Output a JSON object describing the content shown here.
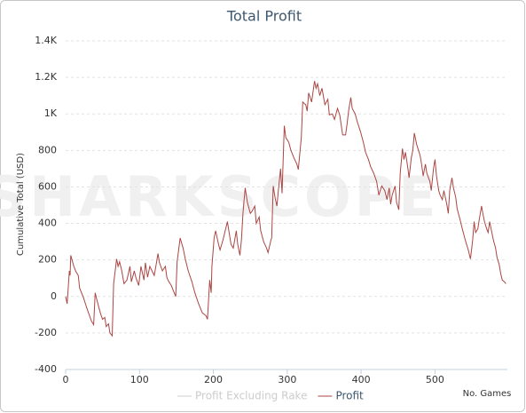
{
  "chart_data": {
    "type": "line",
    "title": "Total Profit",
    "y_label": "Cumulative Total (USD)",
    "x_label": "No. Games",
    "watermark": "SHARKSCOPE",
    "xlim": [
      0,
      598
    ],
    "xticks": [
      0,
      100,
      200,
      300,
      400,
      500
    ],
    "ylim": [
      -400,
      1400
    ],
    "yticks": [
      -400,
      -200,
      0,
      200,
      400,
      600,
      800,
      {
        "value": 1000,
        "label": "1K"
      },
      {
        "value": 1200,
        "label": "1.2K"
      },
      {
        "value": 1400,
        "label": "1.4K"
      }
    ],
    "grid": true,
    "x": [
      0,
      2,
      5,
      6,
      7,
      11,
      14,
      17,
      19,
      24,
      28,
      31,
      35,
      38,
      40,
      43,
      47,
      50,
      53,
      55,
      58,
      60,
      63,
      65,
      69,
      71,
      73,
      76,
      79,
      83,
      87,
      89,
      93,
      95,
      99,
      102,
      106,
      108,
      111,
      114,
      117,
      120,
      123,
      125,
      127,
      131,
      135,
      137,
      139,
      143,
      147,
      149,
      151,
      155,
      159,
      162,
      166,
      171,
      175,
      180,
      185,
      190,
      192,
      195,
      197,
      198,
      201,
      203,
      207,
      209,
      213,
      216,
      219,
      221,
      224,
      227,
      231,
      233,
      236,
      238,
      240,
      243,
      246,
      250,
      252,
      256,
      258,
      262,
      264,
      268,
      272,
      274,
      278,
      279,
      281,
      284,
      286,
      288,
      291,
      293,
      296,
      298,
      302,
      305,
      309,
      313,
      315,
      319,
      321,
      325,
      327,
      329,
      333,
      337,
      339,
      341,
      344,
      347,
      351,
      355,
      357,
      361,
      364,
      368,
      371,
      375,
      379,
      381,
      383,
      386,
      388,
      392,
      395,
      399,
      403,
      406,
      410,
      413,
      417,
      421,
      424,
      428,
      432,
      435,
      438,
      440,
      442,
      446,
      448,
      451,
      453,
      456,
      458,
      460,
      463,
      465,
      468,
      470,
      472,
      475,
      477,
      480,
      482,
      484,
      487,
      489,
      493,
      495,
      498,
      500,
      502,
      505,
      507,
      510,
      512,
      516,
      518,
      520,
      523,
      525,
      528,
      530,
      534,
      537,
      541,
      545,
      548,
      551,
      553,
      555,
      558,
      560,
      563,
      565,
      567,
      570,
      572,
      574,
      577,
      579,
      582,
      584,
      587,
      589,
      591,
      594,
      596
    ],
    "series": [
      {
        "name": "Profit Excluding Rake",
        "color": "#cccccc",
        "visible": false
      },
      {
        "name": "Profit",
        "color": "#aa4643",
        "visible": true,
        "values": [
          0,
          -40,
          140,
          115,
          225,
          165,
          135,
          115,
          45,
          -5,
          -55,
          -90,
          -135,
          -155,
          20,
          -30,
          -90,
          -125,
          -115,
          -165,
          -150,
          -200,
          -215,
          70,
          205,
          165,
          190,
          140,
          70,
          90,
          165,
          80,
          140,
          105,
          60,
          165,
          90,
          185,
          105,
          165,
          140,
          115,
          185,
          235,
          185,
          140,
          165,
          105,
          85,
          60,
          20,
          0,
          190,
          320,
          265,
          205,
          140,
          80,
          20,
          -40,
          -90,
          -105,
          -125,
          90,
          20,
          165,
          320,
          360,
          285,
          255,
          310,
          360,
          410,
          360,
          285,
          265,
          360,
          285,
          225,
          310,
          455,
          595,
          515,
          455,
          465,
          495,
          400,
          435,
          360,
          300,
          265,
          240,
          310,
          320,
          605,
          530,
          495,
          580,
          700,
          565,
          935,
          870,
          845,
          800,
          760,
          725,
          695,
          870,
          1065,
          1050,
          1015,
          1115,
          1065,
          1180,
          1140,
          1165,
          1100,
          1140,
          1050,
          1080,
          995,
          1000,
          970,
          1030,
          995,
          885,
          885,
          945,
          1015,
          1090,
          1030,
          1000,
          955,
          905,
          845,
          790,
          750,
          710,
          675,
          630,
          555,
          605,
          580,
          530,
          595,
          505,
          555,
          605,
          515,
          475,
          675,
          810,
          750,
          790,
          710,
          650,
          760,
          800,
          895,
          835,
          810,
          770,
          720,
          660,
          725,
          675,
          630,
          580,
          700,
          750,
          660,
          580,
          555,
          530,
          580,
          505,
          455,
          580,
          650,
          595,
          545,
          480,
          420,
          370,
          310,
          255,
          205,
          310,
          410,
          350,
          370,
          425,
          495,
          450,
          410,
          370,
          350,
          410,
          350,
          310,
          265,
          215,
          175,
          125,
          90,
          80,
          70
        ]
      }
    ]
  }
}
